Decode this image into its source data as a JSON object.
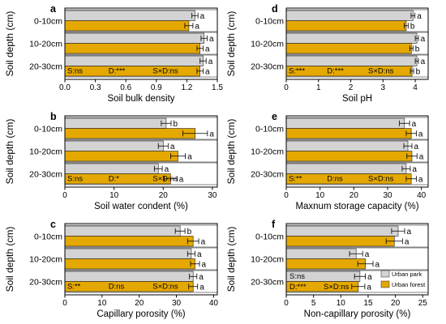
{
  "chart_data": [
    {
      "panel": "a",
      "type": "bar",
      "orientation": "horizontal",
      "xlabel": "Soil bulk density",
      "ylabel": "Soil depth (cm)",
      "categories": [
        "0-10cm",
        "10-20cm",
        "20-30cm"
      ],
      "xlim": [
        0,
        1.5
      ],
      "xticks": [
        0,
        0.3,
        0.6,
        0.9,
        1.2,
        1.5
      ],
      "xtick_labels": [
        "0.0",
        "0.3",
        "0.6",
        "0.9",
        "1.2",
        "1.5"
      ],
      "series": [
        {
          "name": "Urban park",
          "color": "#d3d3d3",
          "values": [
            1.28,
            1.37,
            1.36
          ],
          "errors": [
            0.03,
            0.03,
            0.03
          ],
          "labels": [
            "a",
            "a",
            "a"
          ]
        },
        {
          "name": "Urban forest",
          "color": "#e5a800",
          "values": [
            1.22,
            1.33,
            1.33
          ],
          "errors": [
            0.04,
            0.03,
            0.03
          ],
          "labels": [
            "a",
            "a",
            "a"
          ]
        }
      ],
      "stats": [
        "S:ns",
        "D:***",
        "S×D:ns"
      ]
    },
    {
      "panel": "d",
      "type": "bar",
      "orientation": "horizontal",
      "xlabel": "Soil pH",
      "ylabel": "Soil depth (cm)",
      "categories": [
        "0-10cm",
        "10-20cm",
        "20-30cm"
      ],
      "xlim": [
        0,
        4.4
      ],
      "xticks": [
        0,
        1,
        2,
        3,
        4
      ],
      "xtick_labels": [
        "0",
        "1",
        "2",
        "3",
        "4"
      ],
      "series": [
        {
          "name": "Urban park",
          "color": "#d3d3d3",
          "values": [
            3.93,
            4.05,
            4.05
          ],
          "errors": [
            0.06,
            0.05,
            0.05
          ],
          "labels": [
            "a",
            "a",
            "a"
          ]
        },
        {
          "name": "Urban forest",
          "color": "#e5a800",
          "values": [
            3.72,
            3.88,
            3.9
          ],
          "errors": [
            0.06,
            0.05,
            0.05
          ],
          "labels": [
            "b",
            "b",
            "b"
          ]
        }
      ],
      "stats": [
        "S:***",
        "D:***",
        "S×D:ns"
      ]
    },
    {
      "panel": "b",
      "type": "bar",
      "orientation": "horizontal",
      "xlabel": "Soil water condent (%)",
      "ylabel": "Soil depth (cm)",
      "categories": [
        "0-10cm",
        "10-20cm",
        "20-30cm"
      ],
      "xlim": [
        0,
        31
      ],
      "xticks": [
        0,
        10,
        20,
        30
      ],
      "xtick_labels": [
        "0",
        "10",
        "20",
        "30"
      ],
      "series": [
        {
          "name": "Urban park",
          "color": "#d3d3d3",
          "values": [
            20.6,
            20.0,
            19.0
          ],
          "errors": [
            1.0,
            1.0,
            0.8
          ],
          "labels": [
            "b",
            "a",
            "a"
          ]
        },
        {
          "name": "Urban forest",
          "color": "#e5a800",
          "values": [
            26.5,
            23.0,
            21.5
          ],
          "errors": [
            2.5,
            1.5,
            1.3
          ],
          "labels": [
            "a",
            "a",
            "a"
          ]
        }
      ],
      "stats": [
        "S:ns",
        "D:*",
        "S×D:ns"
      ]
    },
    {
      "panel": "e",
      "type": "bar",
      "orientation": "horizontal",
      "xlabel": "Maxnum storage capacity (%)",
      "ylabel": "Soil depth (cm)",
      "categories": [
        "0-10cm",
        "10-20cm",
        "20-30cm"
      ],
      "xlim": [
        0,
        42
      ],
      "xticks": [
        0,
        10,
        20,
        30,
        40
      ],
      "xtick_labels": [
        "0",
        "10",
        "20",
        "30",
        "40"
      ],
      "series": [
        {
          "name": "Urban park",
          "color": "#d3d3d3",
          "values": [
            35.0,
            36.0,
            35.5
          ],
          "errors": [
            1.5,
            1.2,
            1.2
          ],
          "labels": [
            "a",
            "a",
            "a"
          ]
        },
        {
          "name": "Urban forest",
          "color": "#e5a800",
          "values": [
            37.0,
            37.2,
            37.0
          ],
          "errors": [
            1.5,
            1.5,
            1.5
          ],
          "labels": [
            "a",
            "a",
            "a"
          ]
        }
      ],
      "stats": [
        "S:**",
        "D:ns",
        "S×D:ns"
      ]
    },
    {
      "panel": "c",
      "type": "bar",
      "orientation": "horizontal",
      "xlabel": "Capillary porosity (%)",
      "ylabel": "Soil depth (cm)",
      "categories": [
        "0-10cm",
        "10-20cm",
        "20-30cm"
      ],
      "xlim": [
        0,
        41
      ],
      "xticks": [
        0,
        10,
        20,
        30,
        40
      ],
      "xtick_labels": [
        "0",
        "10",
        "20",
        "30",
        "40"
      ],
      "series": [
        {
          "name": "Urban park",
          "color": "#d3d3d3",
          "values": [
            31.0,
            34.0,
            34.5
          ],
          "errors": [
            1.3,
            1.0,
            1.0
          ],
          "labels": [
            "b",
            "a",
            "a"
          ]
        },
        {
          "name": "Urban forest",
          "color": "#e5a800",
          "values": [
            34.5,
            35.0,
            34.5
          ],
          "errors": [
            1.5,
            1.2,
            1.2
          ],
          "labels": [
            "a",
            "a",
            "a"
          ]
        }
      ],
      "stats": [
        "S:**",
        "D:ns",
        "S×D:ns"
      ]
    },
    {
      "panel": "f",
      "type": "bar",
      "orientation": "horizontal",
      "xlabel": "Non-capillary porosity (%)",
      "ylabel": "Soil depth (cm)",
      "categories": [
        "0-10cm",
        "10-20cm",
        "20-30cm"
      ],
      "xlim": [
        0,
        26
      ],
      "xticks": [
        0,
        5,
        10,
        15,
        20,
        25
      ],
      "xtick_labels": [
        "0",
        "5",
        "10",
        "15",
        "20",
        "25"
      ],
      "series": [
        {
          "name": "Urban park",
          "color": "#d3d3d3",
          "values": [
            20.5,
            12.8,
            13.5
          ],
          "errors": [
            1.2,
            1.2,
            1.0
          ],
          "labels": [
            "a",
            "a",
            "a"
          ]
        },
        {
          "name": "Urban forest",
          "color": "#e5a800",
          "values": [
            19.8,
            14.5,
            13.2
          ],
          "errors": [
            1.5,
            1.4,
            1.2
          ],
          "labels": [
            "a",
            "a",
            "a"
          ]
        }
      ],
      "stats": [
        "S:ns",
        "D:***",
        "S×D:ns"
      ],
      "legend": {
        "placement": "right",
        "entries": [
          "Urban park",
          "Urban forest"
        ]
      }
    }
  ]
}
